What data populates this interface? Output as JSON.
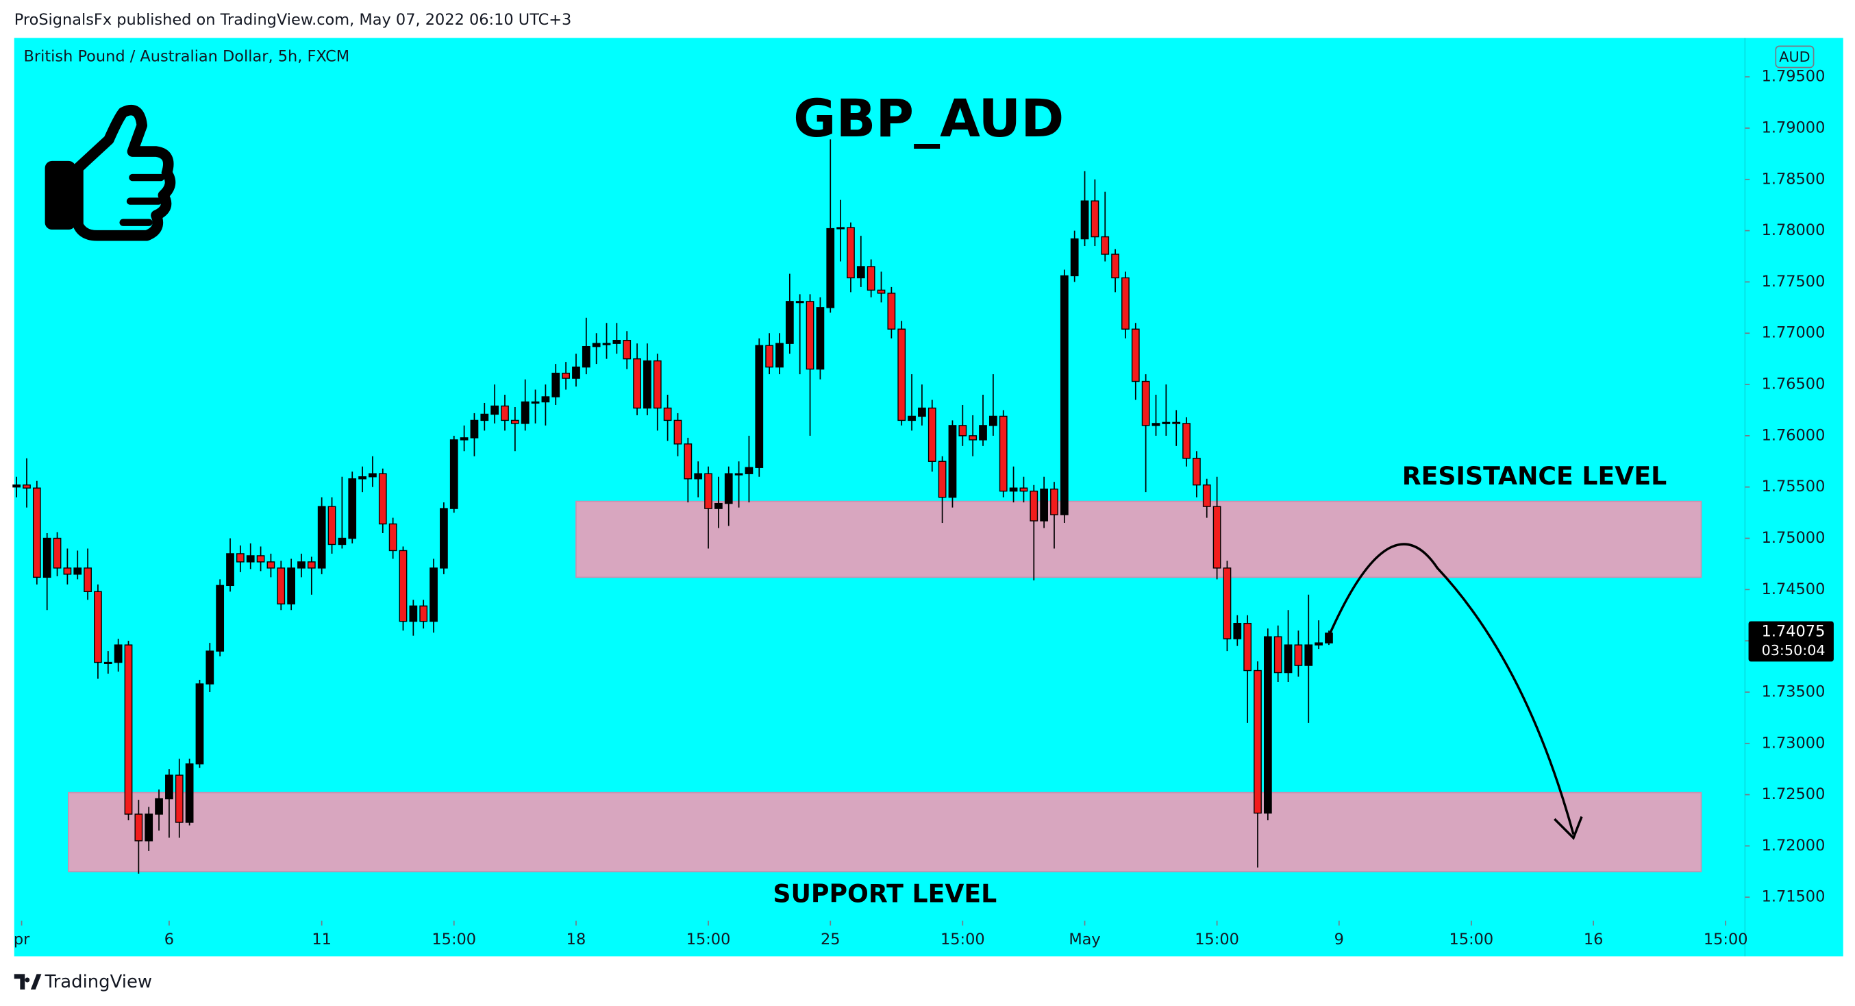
{
  "header": "ProSignalsFx published on TradingView.com, May 07, 2022 06:10 UTC+3",
  "footer": "TradingView",
  "chart_data": {
    "type": "candlestick",
    "title": "GBP_AUD",
    "subtitle": "British Pound / Australian Dollar, 5h, FXCM",
    "currency": "AUD",
    "up_color": "#000000",
    "down_color": "#f21c1c",
    "last_price": 1.74075,
    "countdown": "03:50:04",
    "ylim": [
      1.7127,
      1.7988
    ],
    "yticks": [
      {
        "value": 1.715,
        "label": "1.71500"
      },
      {
        "value": 1.72,
        "label": "1.72000"
      },
      {
        "value": 1.725,
        "label": "1.72500"
      },
      {
        "value": 1.73,
        "label": "1.73000"
      },
      {
        "value": 1.735,
        "label": "1.73500"
      },
      {
        "value": 1.74,
        "label": "1.74000"
      },
      {
        "value": 1.745,
        "label": "1.74500"
      },
      {
        "value": 1.75,
        "label": "1.75000"
      },
      {
        "value": 1.755,
        "label": "1.75500"
      },
      {
        "value": 1.76,
        "label": "1.76000"
      },
      {
        "value": 1.765,
        "label": "1.76500"
      },
      {
        "value": 1.77,
        "label": "1.77000"
      },
      {
        "value": 1.775,
        "label": "1.77500"
      },
      {
        "value": 1.78,
        "label": "1.78000"
      },
      {
        "value": 1.785,
        "label": "1.78500"
      },
      {
        "value": 1.79,
        "label": "1.79000"
      },
      {
        "value": 1.795,
        "label": "1.79500"
      }
    ],
    "xlim": [
      -0.23,
      169.9
    ],
    "xticks": [
      {
        "value": 0.5,
        "label": "pr"
      },
      {
        "value": 15,
        "label": "6"
      },
      {
        "value": 30,
        "label": "11"
      },
      {
        "value": 43,
        "label": "15:00"
      },
      {
        "value": 55,
        "label": "18"
      },
      {
        "value": 68,
        "label": "15:00"
      },
      {
        "value": 80,
        "label": "25"
      },
      {
        "value": 93,
        "label": "15:00"
      },
      {
        "value": 105,
        "label": "May"
      },
      {
        "value": 118,
        "label": "15:00"
      },
      {
        "value": 130,
        "label": "9"
      },
      {
        "value": 143,
        "label": "15:00"
      },
      {
        "value": 155,
        "label": "16"
      },
      {
        "value": 168,
        "label": "15:00"
      }
    ],
    "zones": [
      {
        "name": "RESISTANCE LEVEL",
        "low": 1.7462,
        "high": 1.7536,
        "start": 55,
        "end": 165.6,
        "color": "#d8a6bf"
      },
      {
        "name": "SUPPORT LEVEL",
        "low": 1.7175,
        "high": 1.7252,
        "start": 5.1,
        "end": 165.6,
        "color": "#d8a6bf"
      }
    ],
    "open": [
      1.755,
      1.7552,
      1.7549,
      1.7462,
      1.75,
      1.7471,
      1.7465,
      1.7471,
      1.7448,
      1.7379,
      1.7379,
      1.7396,
      1.7231,
      1.7205,
      1.7231,
      1.7246,
      1.7269,
      1.7223,
      1.728,
      1.7358,
      1.739,
      1.7454,
      1.7485,
      1.7477,
      1.7483,
      1.7477,
      1.7471,
      1.7436,
      1.7471,
      1.7477,
      1.7471,
      1.7531,
      1.7494,
      1.75,
      1.7558,
      1.756,
      1.7563,
      1.7514,
      1.7488,
      1.7419,
      1.7434,
      1.7419,
      1.7471,
      1.7529,
      1.7596,
      1.7598,
      1.7615,
      1.7621,
      1.7629,
      1.7615,
      1.7612,
      1.7633,
      1.7633,
      1.7638,
      1.7661,
      1.7656,
      1.7667,
      1.7687,
      1.769,
      1.769,
      1.7693,
      1.7675,
      1.7627,
      1.7673,
      1.7627,
      1.7615,
      1.7592,
      1.7558,
      1.7563,
      1.7529,
      1.7534,
      1.7563,
      1.7563,
      1.7569,
      1.7688,
      1.7667,
      1.769,
      1.7731,
      1.7731,
      1.7665,
      1.7725,
      1.7802,
      1.7803,
      1.7754,
      1.7765,
      1.7742,
      1.7739,
      1.7704,
      1.7615,
      1.7619,
      1.7627,
      1.7575,
      1.754,
      1.761,
      1.76,
      1.7596,
      1.761,
      1.7619,
      1.7546,
      1.7549,
      1.7546,
      1.7517,
      1.7548,
      1.7523,
      1.7756,
      1.7792,
      1.7829,
      1.7794,
      1.7777,
      1.7754,
      1.7704,
      1.7653,
      1.761,
      1.7612,
      1.7613,
      1.7612,
      1.7578,
      1.7552,
      1.7531,
      1.7471,
      1.7402,
      1.7417,
      1.7371,
      1.7232,
      1.7404,
      1.7369,
      1.7396,
      1.7376,
      1.7396,
      1.7398
    ],
    "high": [
      1.756,
      1.7578,
      1.7556,
      1.7505,
      1.7506,
      1.749,
      1.7488,
      1.749,
      1.7455,
      1.739,
      1.7402,
      1.74,
      1.7245,
      1.7238,
      1.7255,
      1.7275,
      1.7285,
      1.7285,
      1.7362,
      1.7398,
      1.746,
      1.75,
      1.7493,
      1.7495,
      1.7492,
      1.7485,
      1.7478,
      1.748,
      1.7485,
      1.7482,
      1.754,
      1.754,
      1.756,
      1.7565,
      1.757,
      1.758,
      1.7568,
      1.752,
      1.7492,
      1.744,
      1.744,
      1.748,
      1.7535,
      1.76,
      1.761,
      1.7622,
      1.7632,
      1.765,
      1.764,
      1.7628,
      1.7655,
      1.7645,
      1.765,
      1.767,
      1.7672,
      1.768,
      1.7715,
      1.77,
      1.771,
      1.771,
      1.7702,
      1.769,
      1.769,
      1.768,
      1.764,
      1.7622,
      1.7598,
      1.7575,
      1.757,
      1.756,
      1.757,
      1.7575,
      1.76,
      1.7695,
      1.77,
      1.77,
      1.7758,
      1.7738,
      1.7738,
      1.7735,
      1.7889,
      1.783,
      1.7808,
      1.7795,
      1.7772,
      1.776,
      1.7745,
      1.7712,
      1.766,
      1.765,
      1.7635,
      1.758,
      1.7615,
      1.763,
      1.762,
      1.764,
      1.766,
      1.7625,
      1.757,
      1.756,
      1.7552,
      1.756,
      1.7555,
      1.7762,
      1.78,
      1.7858,
      1.785,
      1.7838,
      1.7782,
      1.776,
      1.771,
      1.766,
      1.764,
      1.765,
      1.7625,
      1.7618,
      1.7585,
      1.7558,
      1.756,
      1.7478,
      1.7425,
      1.7425,
      1.738,
      1.7412,
      1.7415,
      1.743,
      1.741,
      1.7445,
      1.742,
      1.741
    ],
    "low": [
      1.754,
      1.753,
      1.7455,
      1.743,
      1.7463,
      1.7455,
      1.746,
      1.744,
      1.7363,
      1.7368,
      1.737,
      1.7225,
      1.7173,
      1.7195,
      1.7215,
      1.7208,
      1.7208,
      1.722,
      1.7276,
      1.735,
      1.7385,
      1.7448,
      1.7467,
      1.747,
      1.7468,
      1.7462,
      1.743,
      1.743,
      1.7462,
      1.7445,
      1.7465,
      1.7485,
      1.749,
      1.7495,
      1.7545,
      1.755,
      1.7505,
      1.748,
      1.741,
      1.7405,
      1.7412,
      1.7408,
      1.7465,
      1.7525,
      1.7585,
      1.758,
      1.7605,
      1.7612,
      1.7605,
      1.7585,
      1.7605,
      1.7612,
      1.761,
      1.763,
      1.7645,
      1.7648,
      1.766,
      1.767,
      1.7675,
      1.768,
      1.7665,
      1.762,
      1.762,
      1.7605,
      1.7595,
      1.758,
      1.7535,
      1.754,
      1.749,
      1.751,
      1.7512,
      1.753,
      1.7535,
      1.756,
      1.766,
      1.766,
      1.768,
      1.766,
      1.76,
      1.7655,
      1.772,
      1.777,
      1.774,
      1.7745,
      1.7735,
      1.773,
      1.7695,
      1.761,
      1.7605,
      1.761,
      1.7565,
      1.7515,
      1.753,
      1.759,
      1.758,
      1.759,
      1.76,
      1.754,
      1.7535,
      1.7535,
      1.7459,
      1.751,
      1.749,
      1.7515,
      1.775,
      1.7785,
      1.7785,
      1.777,
      1.774,
      1.7695,
      1.7635,
      1.7545,
      1.76,
      1.76,
      1.759,
      1.757,
      1.754,
      1.752,
      1.746,
      1.739,
      1.7395,
      1.732,
      1.7179,
      1.7225,
      1.736,
      1.736,
      1.7365,
      1.732,
      1.7392,
      1.7396
    ],
    "close": [
      1.7552,
      1.7549,
      1.7462,
      1.75,
      1.7471,
      1.7465,
      1.7471,
      1.7448,
      1.7379,
      1.7379,
      1.7396,
      1.7231,
      1.7205,
      1.7231,
      1.7246,
      1.7269,
      1.7223,
      1.728,
      1.7358,
      1.739,
      1.7454,
      1.7485,
      1.7477,
      1.7483,
      1.7477,
      1.7471,
      1.7436,
      1.7471,
      1.7477,
      1.7471,
      1.7531,
      1.7494,
      1.75,
      1.7558,
      1.756,
      1.7563,
      1.7514,
      1.7488,
      1.7419,
      1.7434,
      1.7419,
      1.7471,
      1.7529,
      1.7596,
      1.7598,
      1.7615,
      1.7621,
      1.7629,
      1.7615,
      1.7612,
      1.7633,
      1.7633,
      1.7638,
      1.7661,
      1.7656,
      1.7667,
      1.7687,
      1.769,
      1.769,
      1.7693,
      1.7675,
      1.7627,
      1.7673,
      1.7627,
      1.7615,
      1.7592,
      1.7558,
      1.7563,
      1.7529,
      1.7534,
      1.7563,
      1.7563,
      1.7569,
      1.7688,
      1.7667,
      1.769,
      1.7731,
      1.7731,
      1.7665,
      1.7725,
      1.7802,
      1.7803,
      1.7754,
      1.7765,
      1.7742,
      1.7739,
      1.7704,
      1.7615,
      1.7619,
      1.7627,
      1.7575,
      1.754,
      1.761,
      1.76,
      1.7596,
      1.761,
      1.7619,
      1.7546,
      1.7549,
      1.7546,
      1.7517,
      1.7548,
      1.7523,
      1.7756,
      1.7792,
      1.7829,
      1.7794,
      1.7777,
      1.7754,
      1.7704,
      1.7653,
      1.761,
      1.7612,
      1.7613,
      1.7612,
      1.7578,
      1.7552,
      1.7531,
      1.7471,
      1.7402,
      1.7417,
      1.7371,
      1.7232,
      1.7404,
      1.7369,
      1.7396,
      1.7376,
      1.7396,
      1.7398,
      1.74075
    ]
  }
}
